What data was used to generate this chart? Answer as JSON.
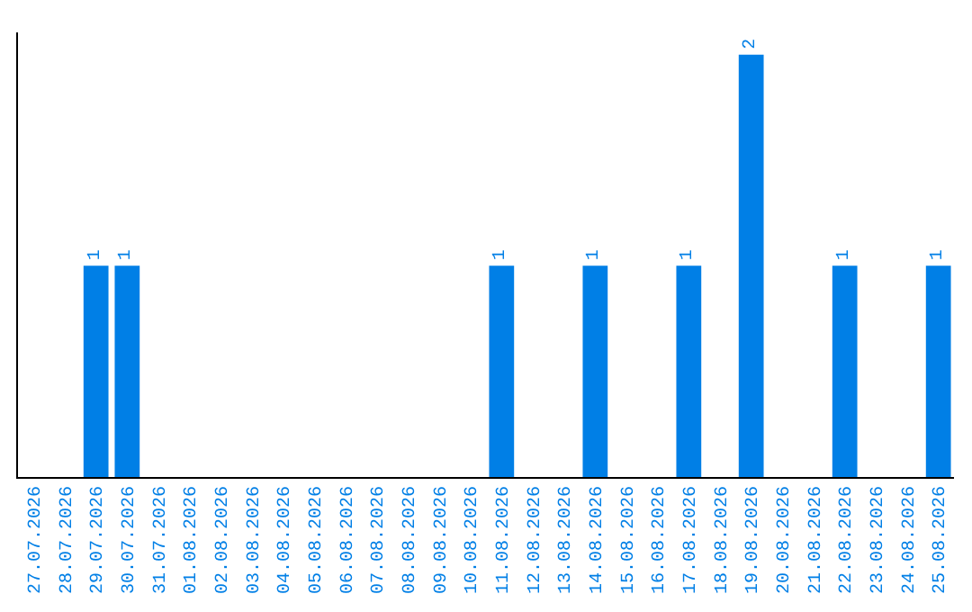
{
  "chart_data": {
    "type": "bar",
    "categories": [
      "27.07.2026",
      "28.07.2026",
      "29.07.2026",
      "30.07.2026",
      "31.07.2026",
      "01.08.2026",
      "02.08.2026",
      "03.08.2026",
      "04.08.2026",
      "05.08.2026",
      "06.08.2026",
      "07.08.2026",
      "08.08.2026",
      "09.08.2026",
      "10.08.2026",
      "11.08.2026",
      "12.08.2026",
      "13.08.2026",
      "14.08.2026",
      "15.08.2026",
      "16.08.2026",
      "17.08.2026",
      "18.08.2026",
      "19.08.2026",
      "20.08.2026",
      "21.08.2026",
      "22.08.2026",
      "23.08.2026",
      "24.08.2026",
      "25.08.2026"
    ],
    "values": [
      0,
      0,
      1,
      1,
      0,
      0,
      0,
      0,
      0,
      0,
      0,
      0,
      0,
      0,
      0,
      1,
      0,
      0,
      1,
      0,
      0,
      1,
      0,
      2,
      0,
      0,
      1,
      0,
      0,
      1
    ],
    "value_labels": [
      null,
      null,
      "1",
      "1",
      null,
      null,
      null,
      null,
      null,
      null,
      null,
      null,
      null,
      null,
      null,
      "1",
      null,
      null,
      "1",
      null,
      null,
      "1",
      null,
      "2",
      null,
      null,
      "1",
      null,
      null,
      "1"
    ],
    "color": "#007fe6",
    "tick_labels": "x"
  }
}
